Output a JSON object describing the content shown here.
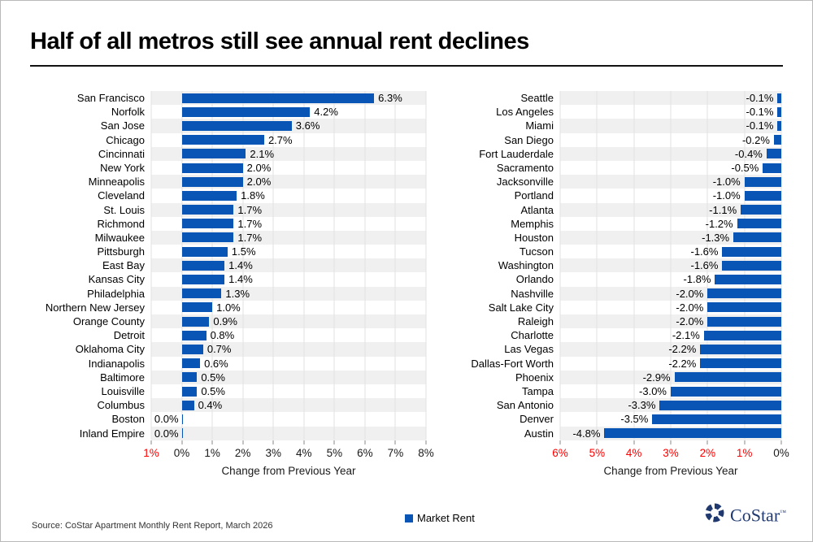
{
  "slide": {
    "title": "Half of all metros still see annual rent declines",
    "source": "Source: CoStar Apartment Monthly Rent Report, March 2026",
    "legend": {
      "label": "Market Rent"
    },
    "logo": {
      "text": "CoStar",
      "trademark": "™"
    }
  },
  "colors": {
    "bar": "#0955b5",
    "negative_tick": "#ff0000",
    "tick_label": "#1a1a1a",
    "stripe": "#f0f0f0",
    "gridline": "#e2e2e2",
    "axis_line": "#b3b3b3",
    "logo_navy": "#203a70"
  },
  "chart_data": [
    {
      "type": "bar",
      "orientation": "horizontal",
      "series_name": "Market Rent",
      "xlabel": "Change from Previous Year",
      "xlim": [
        -1,
        8
      ],
      "grid": true,
      "anchor": "left",
      "categories": [
        "San Francisco",
        "Norfolk",
        "San Jose",
        "Chicago",
        "Cincinnati",
        "New York",
        "Minneapolis",
        "Cleveland",
        "St. Louis",
        "Richmond",
        "Milwaukee",
        "Pittsburgh",
        "East Bay",
        "Kansas City",
        "Philadelphia",
        "Northern New Jersey",
        "Orange County",
        "Detroit",
        "Oklahoma City",
        "Indianapolis",
        "Baltimore",
        "Louisville",
        "Columbus",
        "Boston",
        "Inland Empire"
      ],
      "values": [
        6.3,
        4.2,
        3.6,
        2.7,
        2.1,
        2.0,
        2.0,
        1.8,
        1.7,
        1.7,
        1.7,
        1.5,
        1.4,
        1.4,
        1.3,
        1.0,
        0.9,
        0.8,
        0.7,
        0.6,
        0.5,
        0.5,
        0.4,
        0.0,
        0.0
      ],
      "labels": [
        "6.3%",
        "4.2%",
        "3.6%",
        "2.7%",
        "2.1%",
        "2.0%",
        "2.0%",
        "1.8%",
        "1.7%",
        "1.7%",
        "1.7%",
        "1.5%",
        "1.4%",
        "1.4%",
        "1.3%",
        "1.0%",
        "0.9%",
        "0.8%",
        "0.7%",
        "0.6%",
        "0.5%",
        "0.5%",
        "0.4%",
        "0.0%",
        "0.0%"
      ],
      "xticks": [
        {
          "value": -1,
          "label": "1%"
        },
        {
          "value": 0,
          "label": "0%"
        },
        {
          "value": 1,
          "label": "1%"
        },
        {
          "value": 2,
          "label": "2%"
        },
        {
          "value": 3,
          "label": "3%"
        },
        {
          "value": 4,
          "label": "4%"
        },
        {
          "value": 5,
          "label": "5%"
        },
        {
          "value": 6,
          "label": "6%"
        },
        {
          "value": 7,
          "label": "7%"
        },
        {
          "value": 8,
          "label": "8%"
        }
      ]
    },
    {
      "type": "bar",
      "orientation": "horizontal",
      "series_name": "Market Rent",
      "xlabel": "Change from Previous Year",
      "xlim": [
        -6,
        0
      ],
      "grid": true,
      "anchor": "right",
      "categories": [
        "Seattle",
        "Los Angeles",
        "Miami",
        "San Diego",
        "Fort Lauderdale",
        "Sacramento",
        "Jacksonville",
        "Portland",
        "Atlanta",
        "Memphis",
        "Houston",
        "Tucson",
        "Washington",
        "Orlando",
        "Nashville",
        "Salt Lake City",
        "Raleigh",
        "Charlotte",
        "Las Vegas",
        "Dallas-Fort Worth",
        "Phoenix",
        "Tampa",
        "San Antonio",
        "Denver",
        "Austin"
      ],
      "values": [
        -0.1,
        -0.1,
        -0.1,
        -0.2,
        -0.4,
        -0.5,
        -1.0,
        -1.0,
        -1.1,
        -1.2,
        -1.3,
        -1.6,
        -1.6,
        -1.8,
        -2.0,
        -2.0,
        -2.0,
        -2.1,
        -2.2,
        -2.2,
        -2.9,
        -3.0,
        -3.3,
        -3.5,
        -4.8
      ],
      "labels": [
        "-0.1%",
        "-0.1%",
        "-0.1%",
        "-0.2%",
        "-0.4%",
        "-0.5%",
        "-1.0%",
        "-1.0%",
        "-1.1%",
        "-1.2%",
        "-1.3%",
        "-1.6%",
        "-1.6%",
        "-1.8%",
        "-2.0%",
        "-2.0%",
        "-2.0%",
        "-2.1%",
        "-2.2%",
        "-2.2%",
        "-2.9%",
        "-3.0%",
        "-3.3%",
        "-3.5%",
        "-4.8%"
      ],
      "xticks": [
        {
          "value": -6,
          "label": "6%"
        },
        {
          "value": -5,
          "label": "5%"
        },
        {
          "value": -4,
          "label": "4%"
        },
        {
          "value": -3,
          "label": "3%"
        },
        {
          "value": -2,
          "label": "2%"
        },
        {
          "value": -1,
          "label": "1%"
        },
        {
          "value": 0,
          "label": "0%"
        }
      ]
    }
  ]
}
